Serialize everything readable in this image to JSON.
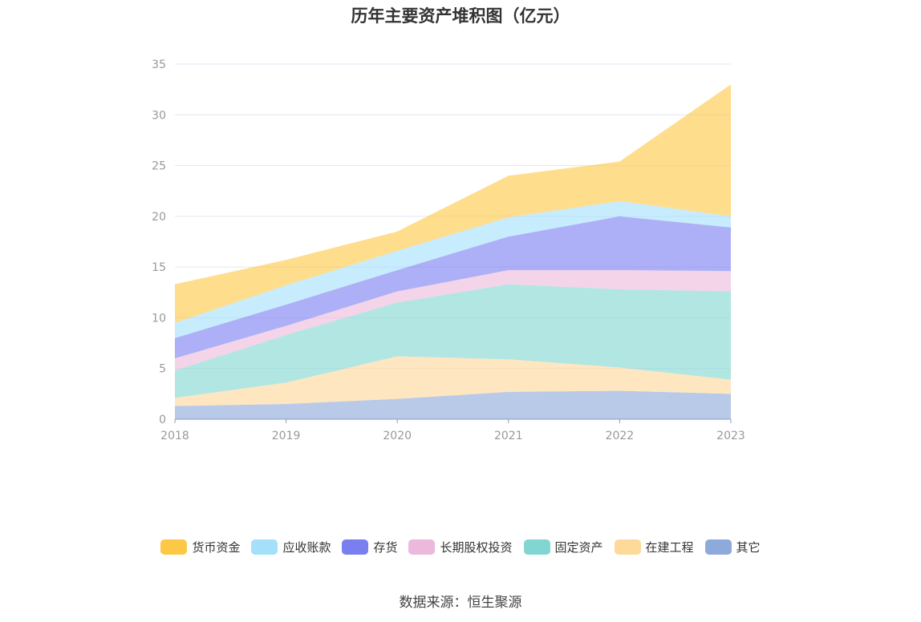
{
  "title": "历年主要资产堆积图（亿元）",
  "source": "数据来源：恒生聚源",
  "chart_data": {
    "type": "area",
    "stacked": true,
    "x": [
      "2018",
      "2019",
      "2020",
      "2021",
      "2022",
      "2023"
    ],
    "ylim": [
      0,
      35
    ],
    "yticks": [
      0,
      5,
      10,
      15,
      20,
      25,
      30,
      35
    ],
    "grid": true,
    "legend_position": "bottom",
    "series": [
      {
        "name": "其它",
        "color": "#8eaadb",
        "values": [
          1.3,
          1.5,
          2.0,
          2.7,
          2.8,
          2.5
        ]
      },
      {
        "name": "在建工程",
        "color": "#fdd99a",
        "values": [
          0.8,
          2.1,
          4.2,
          3.2,
          2.3,
          1.4
        ]
      },
      {
        "name": "固定资产",
        "color": "#82d6d2",
        "values": [
          2.7,
          4.7,
          5.3,
          7.4,
          7.7,
          8.7
        ]
      },
      {
        "name": "长期股权投资",
        "color": "#ebb9db",
        "values": [
          1.2,
          0.9,
          1.1,
          1.4,
          1.9,
          2.0
        ]
      },
      {
        "name": "存货",
        "color": "#7a7ff0",
        "values": [
          2.0,
          2.1,
          2.1,
          3.3,
          5.3,
          4.3
        ]
      },
      {
        "name": "应收账款",
        "color": "#a5e0fb",
        "values": [
          1.5,
          1.9,
          1.9,
          1.9,
          1.5,
          1.1
        ]
      },
      {
        "name": "货币资金",
        "color": "#fdc845",
        "values": [
          3.8,
          2.5,
          1.9,
          4.1,
          3.9,
          13.0
        ]
      }
    ]
  }
}
